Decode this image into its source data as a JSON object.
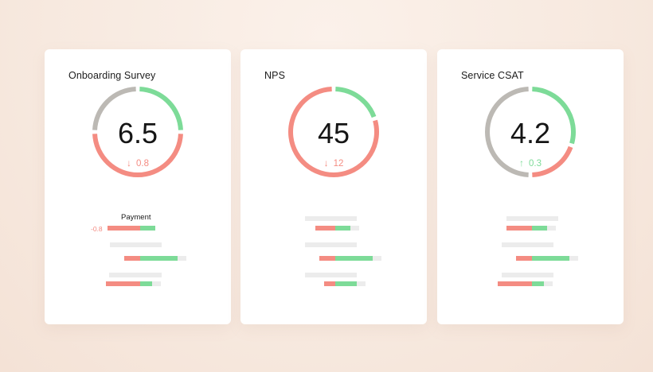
{
  "colors": {
    "negative": "#f48c82",
    "positive": "#7ddb98",
    "neutral": "#bcb9b4",
    "placeholder": "#ececec"
  },
  "cards": [
    {
      "title": "Onboarding Survey",
      "value": "6.5",
      "delta": "0.8",
      "delta_direction": "down",
      "gauge": {
        "negative": 0.5,
        "positive": 0.25,
        "neutral": 0.25
      },
      "row_label": "Payment",
      "row_value": "-0.8"
    },
    {
      "title": "NPS",
      "value": "45",
      "delta": "12",
      "delta_direction": "down",
      "gauge": {
        "negative": 0.8,
        "positive": 0.2,
        "neutral": 0
      }
    },
    {
      "title": "Service CSAT",
      "value": "4.2",
      "delta": "0.3",
      "delta_direction": "up",
      "gauge": {
        "negative": 0.2,
        "positive": 0.3,
        "neutral": 0.5
      }
    }
  ]
}
